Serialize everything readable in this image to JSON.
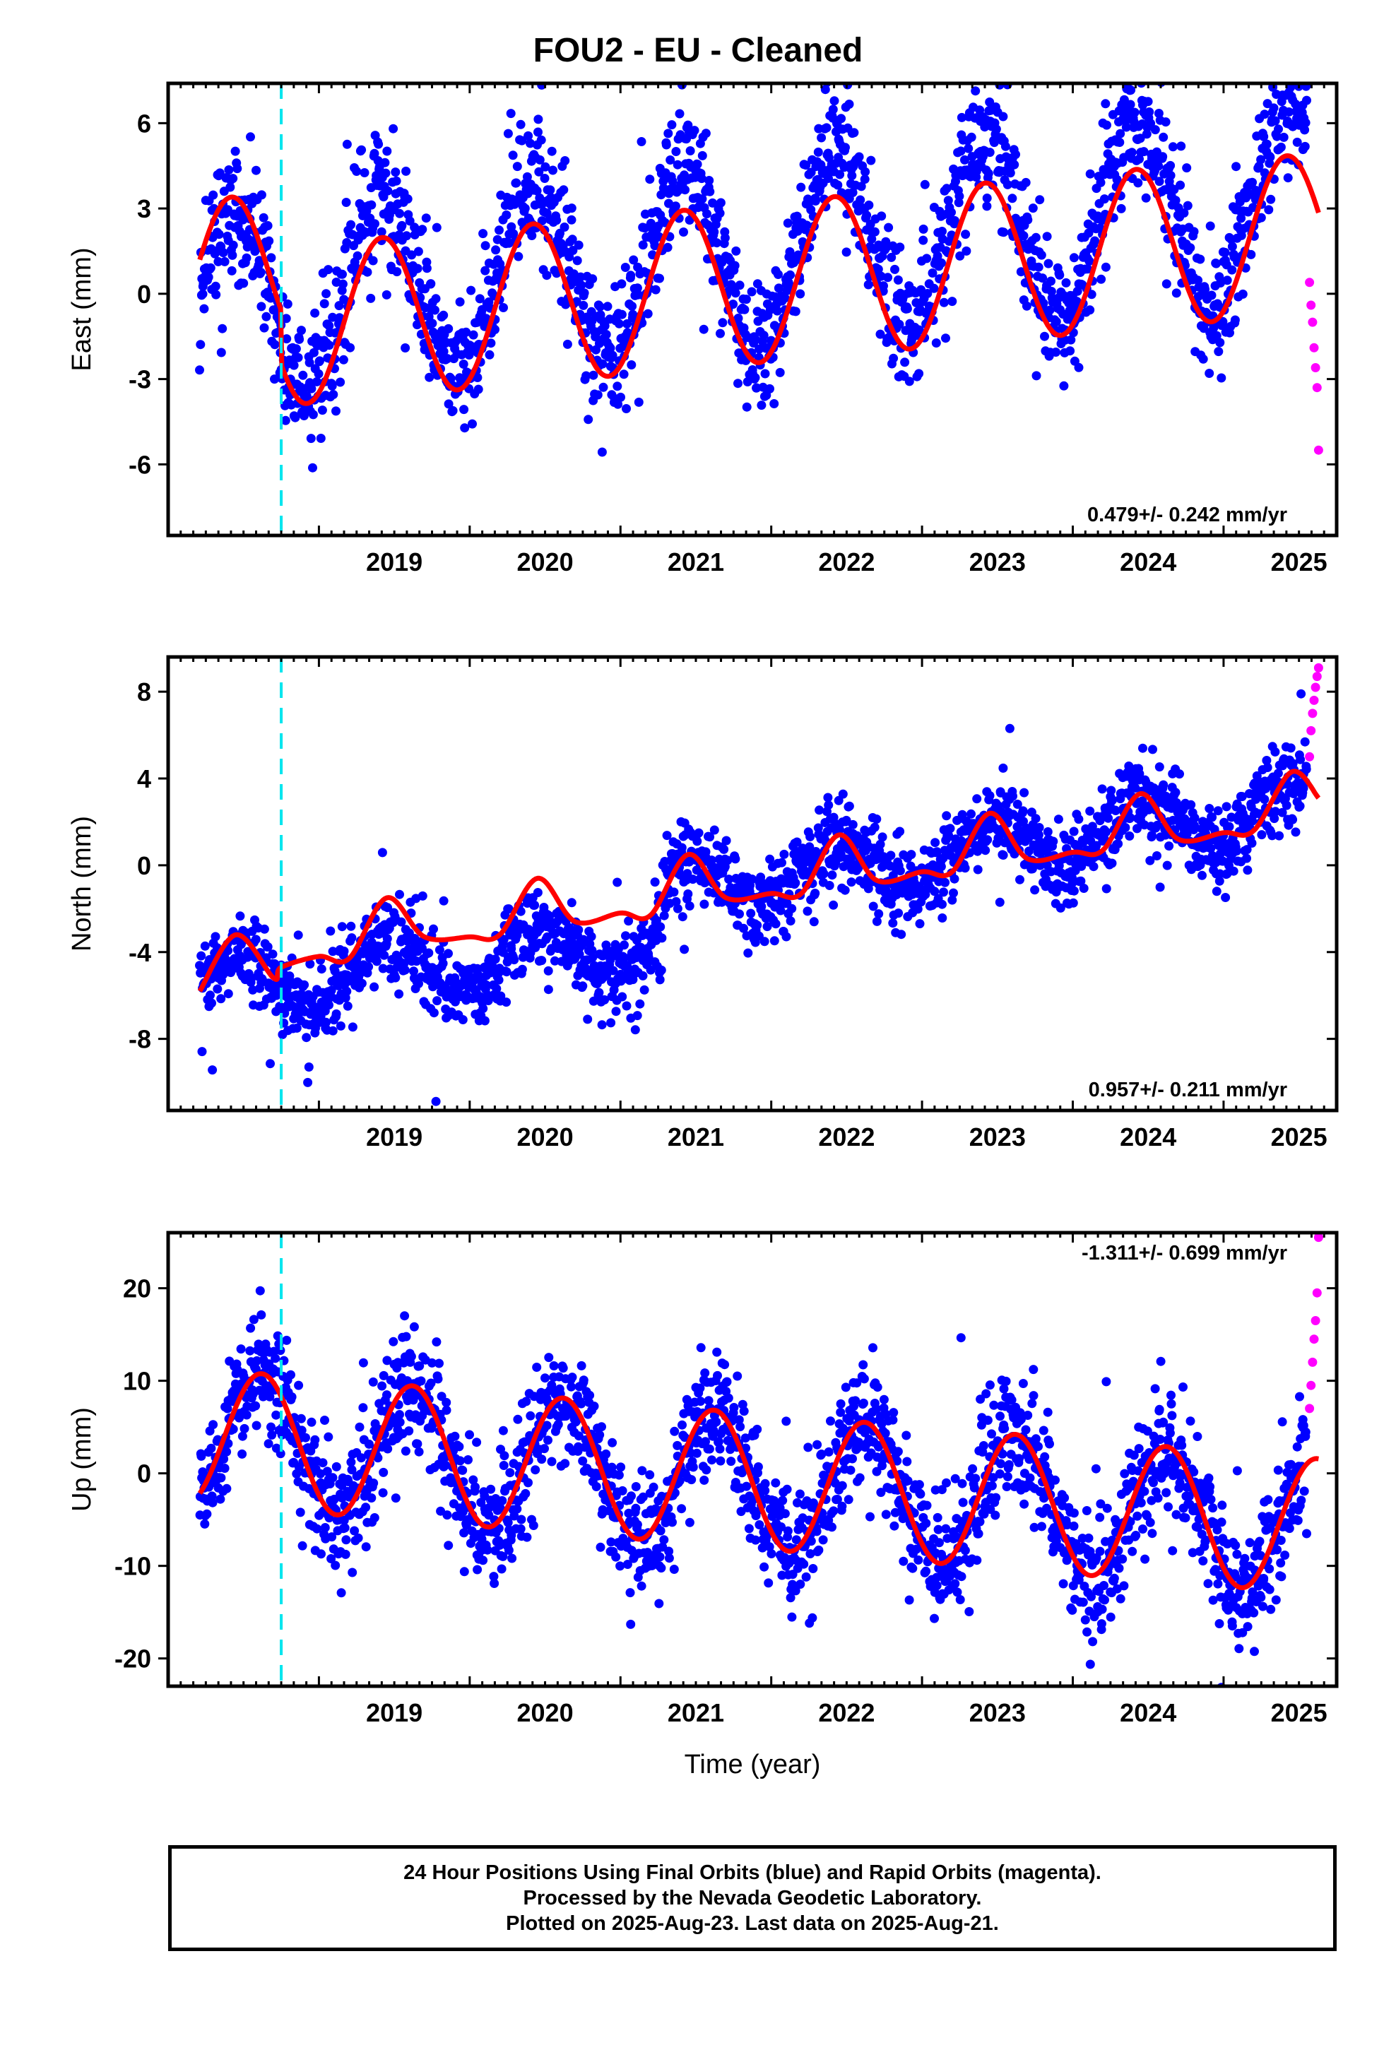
{
  "title": "FOU2  - EU - Cleaned",
  "footer": {
    "line1": "24 Hour Positions Using Final Orbits (blue) and Rapid Orbits (magenta).",
    "line2": "Processed by the Nevada Geodetic Laboratory.",
    "line3": "Plotted on 2025-Aug-23. Last data on 2025-Aug-21."
  },
  "colors": {
    "final_orbits": "#0000ff",
    "rapid_orbits": "#ff00ff",
    "model_fit": "#ff0000",
    "equipment_change": "#00e5ee"
  },
  "chart_data": [
    {
      "type": "scatter",
      "panel": "east",
      "ylabel": "East (mm)",
      "xlabel": "",
      "xlim": [
        2018.0,
        2025.75
      ],
      "ylim": [
        -8.5,
        7.4
      ],
      "x_ticks": [
        2019,
        2020,
        2021,
        2022,
        2023,
        2024,
        2025
      ],
      "y_ticks": [
        -6,
        -3,
        0,
        3,
        6
      ],
      "rate_label": "0.479+/- 0.242 mm/yr",
      "rate_position": "bottom-right",
      "equipment_change_year": 2018.75,
      "series": [
        {
          "role": "final-orbits",
          "x_range": [
            2018.21,
            2025.55
          ],
          "seasonal": {
            "offset": -0.3,
            "rate": 0.479,
            "amplitude": 3.3,
            "peak_phase": 0.42
          },
          "scatter_sd": 1.15
        },
        {
          "role": "rapid-orbits",
          "x": [
            2025.57,
            2025.58,
            2025.59,
            2025.6,
            2025.61,
            2025.62,
            2025.63
          ],
          "y": [
            0.4,
            -0.4,
            -1.0,
            -1.9,
            -2.6,
            -3.3,
            -5.5
          ]
        },
        {
          "role": "model-fit",
          "x_range": [
            2018.21,
            2025.63
          ],
          "step_at": 2018.75,
          "segments": [
            {
              "offset": 0.5,
              "rate": 0.479
            },
            {
              "offset": -1.4,
              "rate": 0.479
            }
          ],
          "amplitude": 2.8,
          "peak_phase": 0.42
        }
      ]
    },
    {
      "type": "scatter",
      "panel": "north",
      "ylabel": "North (mm)",
      "xlabel": "",
      "xlim": [
        2018.0,
        2025.75
      ],
      "ylim": [
        -11.3,
        9.6
      ],
      "x_ticks": [
        2019,
        2020,
        2021,
        2022,
        2023,
        2024,
        2025
      ],
      "y_ticks": [
        -8,
        -4,
        0,
        4,
        8
      ],
      "rate_label": "0.957+/- 0.211 mm/yr",
      "rate_position": "bottom-right",
      "equipment_change_year": 2018.75,
      "series": [
        {
          "role": "final-orbits",
          "x_range": [
            2018.21,
            2025.55
          ],
          "jump_at": 2021.28,
          "before": {
            "offset": -5.6,
            "rate": 0.62
          },
          "after": {
            "offset": -4.2,
            "rate": 0.95
          },
          "amplitude": 1.3,
          "peak_phase": 0.45,
          "scatter_sd": 0.95
        },
        {
          "role": "rapid-orbits",
          "x": [
            2025.57,
            2025.58,
            2025.59,
            2025.6,
            2025.61,
            2025.62,
            2025.63
          ],
          "y": [
            5.0,
            6.2,
            7.0,
            7.6,
            8.2,
            8.7,
            9.1
          ]
        },
        {
          "role": "model-fit",
          "x": [
            2018.21,
            2018.45,
            2018.7,
            2018.75,
            2019.0,
            2019.2,
            2019.45,
            2019.7,
            2020.0,
            2020.2,
            2020.45,
            2020.7,
            2021.0,
            2021.2,
            2021.45,
            2021.7,
            2022.0,
            2022.2,
            2022.45,
            2022.7,
            2023.0,
            2023.2,
            2023.45,
            2023.7,
            2024.0,
            2024.2,
            2024.45,
            2024.7,
            2025.0,
            2025.2,
            2025.45,
            2025.63
          ],
          "y": [
            -5.8,
            -3.2,
            -5.2,
            -4.7,
            -4.2,
            -4.3,
            -1.5,
            -3.3,
            -3.3,
            -3.2,
            -0.6,
            -2.6,
            -2.2,
            -2.3,
            0.5,
            -1.5,
            -1.3,
            -1.3,
            1.4,
            -0.7,
            -0.3,
            -0.3,
            2.4,
            0.3,
            0.6,
            0.7,
            3.3,
            1.2,
            1.5,
            1.6,
            4.3,
            3.1
          ]
        }
      ]
    },
    {
      "type": "scatter",
      "panel": "up",
      "ylabel": "Up (mm)",
      "xlabel": "Time (year)",
      "xlim": [
        2018.0,
        2025.75
      ],
      "ylim": [
        -23,
        26
      ],
      "x_ticks": [
        2019,
        2020,
        2021,
        2022,
        2023,
        2024,
        2025
      ],
      "y_ticks": [
        -20,
        -10,
        0,
        10,
        20
      ],
      "rate_label": "-1.311+/- 0.699 mm/yr",
      "rate_position": "top-right",
      "equipment_change_year": 2018.75,
      "series": [
        {
          "role": "final-orbits",
          "x_range": [
            2018.21,
            2025.55
          ],
          "seasonal": {
            "offset": 4.0,
            "rate": -1.311,
            "amplitude": 7.3,
            "peak_phase": 0.62
          },
          "scatter_sd": 3.3
        },
        {
          "role": "rapid-orbits",
          "x": [
            2025.57,
            2025.58,
            2025.59,
            2025.6,
            2025.61,
            2025.62,
            2025.63
          ],
          "y": [
            7.0,
            9.5,
            12.0,
            14.5,
            16.5,
            19.5,
            25.5
          ]
        },
        {
          "role": "model-fit",
          "x_range": [
            2018.21,
            2025.63
          ],
          "seasonal": {
            "offset": 4.0,
            "rate": -1.311,
            "amplitude": 7.3,
            "peak_phase": 0.62
          }
        }
      ]
    }
  ]
}
